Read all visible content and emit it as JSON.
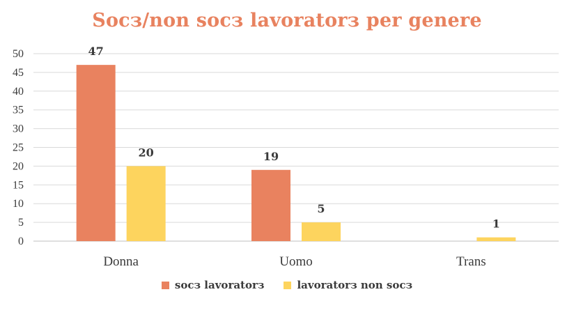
{
  "chart_data": {
    "type": "bar",
    "title": "Socз/non socз lavoratorз per genere",
    "categories": [
      "Donna",
      "Uomo",
      "Trans"
    ],
    "series": [
      {
        "name": "socз lavoratorз",
        "values": [
          47,
          19,
          0
        ],
        "labels": [
          "47",
          "19",
          ""
        ],
        "color": "#e9825f"
      },
      {
        "name": "lavoratorз non socз",
        "values": [
          20,
          5,
          1
        ],
        "labels": [
          "20",
          "5",
          "1"
        ],
        "color": "#fdd45e"
      }
    ],
    "yticks": [
      "0",
      "5",
      "10",
      "15",
      "20",
      "25",
      "30",
      "35",
      "40",
      "45",
      "50"
    ],
    "ylim": [
      0,
      50
    ],
    "grid": true,
    "legend_position": "bottom"
  }
}
